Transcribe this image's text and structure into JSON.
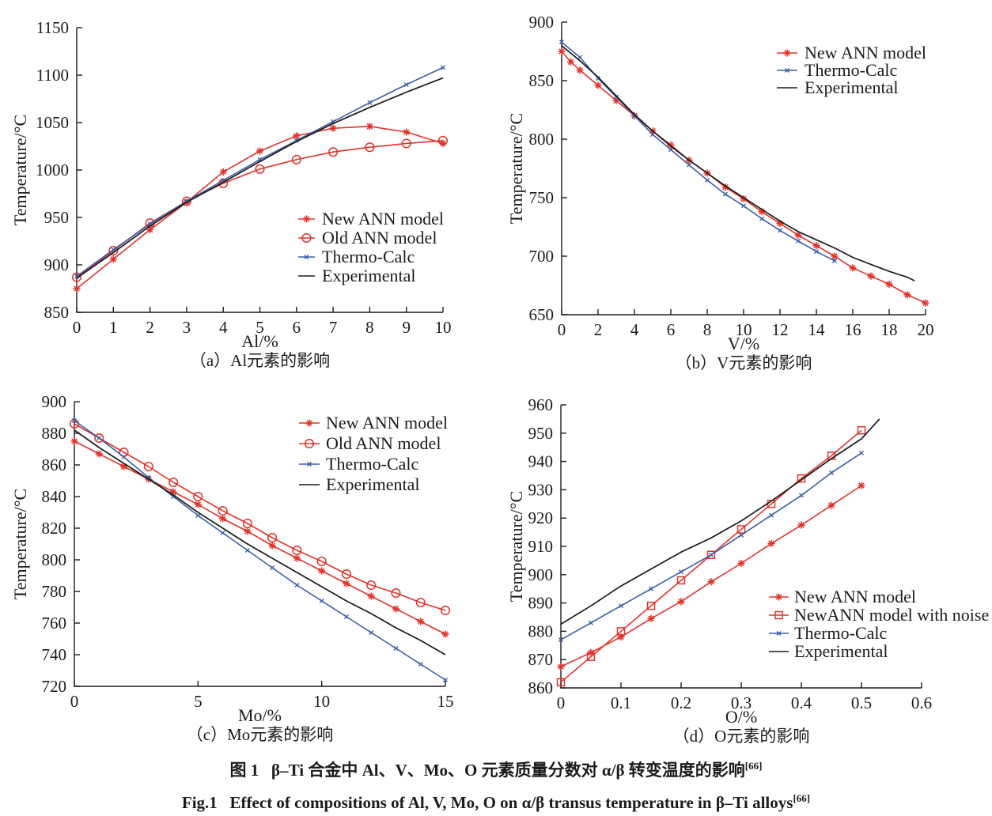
{
  "figure": {
    "caption_chinese": "图 1   β–Ti 合金中 Al、V、Mo、O 元素质量分数对 α/β 转变温度的影响",
    "caption_english": "Fig.1   Effect of compositions of Al, V, Mo, O on α/β transus temperature in β–Ti alloys",
    "reference_superscript": "[66]"
  },
  "colors": {
    "red": "#e0342b",
    "blue": "#3a5fa8",
    "black": "#1b1b1b"
  },
  "chart_data": [
    {
      "id": "a",
      "type": "line",
      "subtitle": "（a）Al元素的影响",
      "xlabel": "Al/%",
      "ylabel": "Temperature/°C",
      "xlim": [
        0,
        10
      ],
      "ylim": [
        850,
        1150
      ],
      "xticks": [
        0,
        1,
        2,
        3,
        4,
        5,
        6,
        7,
        8,
        9,
        10
      ],
      "yticks": [
        850,
        900,
        950,
        1000,
        1050,
        1100,
        1150
      ],
      "grid": false,
      "legend_position": "right-lower",
      "series": [
        {
          "name": "New ANN model",
          "color": "red",
          "marker": "star",
          "x": [
            0,
            1,
            2,
            3,
            4,
            5,
            6,
            7,
            8,
            9,
            10
          ],
          "y": [
            875,
            906,
            937,
            966,
            998,
            1020,
            1036,
            1044,
            1046,
            1040,
            1028
          ]
        },
        {
          "name": "Old ANN model",
          "color": "red",
          "marker": "circle",
          "x": [
            0,
            1,
            2,
            3,
            4,
            5,
            6,
            7,
            8,
            9,
            10
          ],
          "y": [
            887,
            915,
            944,
            967,
            986,
            1001,
            1011,
            1019,
            1024,
            1028,
            1031
          ]
        },
        {
          "name": "Thermo-Calc",
          "color": "blue",
          "marker": "x",
          "x": [
            0,
            1,
            2,
            3,
            4,
            5,
            6,
            7,
            8,
            9,
            10
          ],
          "y": [
            888,
            916,
            943,
            967,
            989,
            1011,
            1031,
            1051,
            1071,
            1090,
            1108
          ]
        },
        {
          "name": "Experimental",
          "color": "black",
          "marker": "none",
          "x": [
            0,
            1,
            2,
            3,
            4,
            5,
            6,
            7,
            8,
            9,
            10
          ],
          "y": [
            886,
            913,
            941,
            966,
            987,
            1009,
            1030,
            1049,
            1066,
            1082,
            1097
          ]
        }
      ]
    },
    {
      "id": "b",
      "type": "line",
      "subtitle": "（b）V元素的影响",
      "xlabel": "V/%",
      "ylabel": "Temperature/°C",
      "xlim": [
        0,
        20
      ],
      "ylim": [
        650,
        900
      ],
      "xticks": [
        0,
        2,
        4,
        6,
        8,
        10,
        12,
        14,
        16,
        18,
        20
      ],
      "yticks": [
        650,
        700,
        750,
        800,
        850,
        900
      ],
      "grid": false,
      "legend_position": "top-right",
      "series": [
        {
          "name": "New ANN model",
          "color": "red",
          "marker": "star",
          "x": [
            0,
            0.5,
            1,
            2,
            3,
            4,
            5,
            6,
            7,
            8,
            9,
            10,
            11,
            12,
            13,
            14,
            15,
            16,
            17,
            18,
            19,
            20
          ],
          "y": [
            875,
            866,
            859,
            846,
            833,
            820,
            807,
            795,
            782,
            771,
            759,
            749,
            738,
            728,
            718,
            709,
            700,
            690,
            683,
            676,
            667,
            660
          ]
        },
        {
          "name": "Thermo-Calc",
          "color": "blue",
          "marker": "x",
          "x": [
            0,
            1,
            2,
            3,
            4,
            5,
            6,
            7,
            8,
            9,
            10,
            11,
            12,
            13,
            14,
            15
          ],
          "y": [
            883,
            870,
            852,
            836,
            820,
            804,
            791,
            778,
            765,
            753,
            743,
            732,
            722,
            713,
            704,
            696
          ]
        },
        {
          "name": "Experimental",
          "color": "black",
          "marker": "none",
          "x": [
            0,
            1,
            2,
            3,
            4,
            5,
            6,
            7,
            8,
            9,
            10,
            11,
            12,
            13,
            14,
            15,
            16,
            17,
            18,
            19,
            19.4
          ],
          "y": [
            880,
            867,
            853,
            837,
            821,
            807,
            794,
            782,
            771,
            760,
            750,
            740,
            730,
            721,
            714,
            707,
            699,
            693,
            687,
            682,
            679
          ]
        }
      ]
    },
    {
      "id": "c",
      "type": "line",
      "subtitle": "（c）Mo元素的影响",
      "xlabel": "Mo/%",
      "ylabel": "Temperature/°C",
      "xlim": [
        0,
        15
      ],
      "ylim": [
        720,
        900
      ],
      "xticks": [
        0,
        5,
        10,
        15
      ],
      "yticks": [
        720,
        740,
        760,
        780,
        800,
        820,
        840,
        860,
        880,
        900
      ],
      "grid": false,
      "legend_position": "top-right",
      "series": [
        {
          "name": "New ANN model",
          "color": "red",
          "marker": "star",
          "x": [
            0,
            1,
            2,
            3,
            4,
            5,
            6,
            7,
            8,
            9,
            10,
            11,
            12,
            13,
            14,
            15
          ],
          "y": [
            875,
            867,
            859,
            851,
            843,
            835,
            826,
            818,
            809,
            801,
            793,
            785,
            777,
            769,
            761,
            753
          ]
        },
        {
          "name": "Old ANN model",
          "color": "red",
          "marker": "circle",
          "x": [
            0,
            1,
            2,
            3,
            4,
            5,
            6,
            7,
            8,
            9,
            10,
            11,
            12,
            13,
            14,
            15
          ],
          "y": [
            886,
            877,
            868,
            859,
            849,
            840,
            831,
            823,
            814,
            806,
            799,
            791,
            784,
            779,
            773,
            768
          ]
        },
        {
          "name": "Thermo-Calc",
          "color": "blue",
          "marker": "x",
          "x": [
            0,
            1,
            2,
            3,
            4,
            5,
            6,
            7,
            8,
            9,
            10,
            11,
            12,
            13,
            14,
            15
          ],
          "y": [
            888,
            877,
            865,
            852,
            840,
            828,
            817,
            806,
            795,
            784,
            774,
            764,
            754,
            744,
            734,
            724
          ]
        },
        {
          "name": "Experimental",
          "color": "black",
          "marker": "none",
          "x": [
            0,
            1,
            2,
            3,
            4,
            5,
            6,
            7,
            8,
            9,
            10,
            11,
            12,
            13,
            14,
            15
          ],
          "y": [
            882,
            871,
            861,
            851,
            841,
            830,
            820,
            810,
            801,
            792,
            783,
            774,
            766,
            757,
            749,
            740
          ]
        }
      ]
    },
    {
      "id": "d",
      "type": "line",
      "subtitle": "（d）O元素的影响",
      "xlabel": "O/%",
      "ylabel": "Temperature/°C",
      "xlim": [
        0,
        0.6
      ],
      "ylim": [
        860,
        960
      ],
      "xticks": [
        0,
        0.1,
        0.2,
        0.3,
        0.4,
        0.5,
        0.6
      ],
      "yticks": [
        860,
        870,
        880,
        890,
        900,
        910,
        920,
        930,
        940,
        950,
        960
      ],
      "grid": false,
      "legend_position": "right-lower",
      "series": [
        {
          "name": "New ANN model",
          "color": "red",
          "marker": "star",
          "x": [
            0,
            0.05,
            0.1,
            0.15,
            0.2,
            0.25,
            0.3,
            0.35,
            0.4,
            0.45,
            0.5
          ],
          "y": [
            867.5,
            872.5,
            878,
            884.5,
            890.5,
            897.5,
            904,
            911,
            917.5,
            924.5,
            931.5
          ]
        },
        {
          "name": "NewANN model with noise",
          "color": "red",
          "marker": "square",
          "x": [
            0,
            0.05,
            0.1,
            0.15,
            0.2,
            0.25,
            0.3,
            0.35,
            0.4,
            0.45,
            0.5
          ],
          "y": [
            862,
            871,
            880,
            889,
            898,
            907,
            916,
            925,
            934,
            942,
            951
          ]
        },
        {
          "name": "Thermo-Calc",
          "color": "blue",
          "marker": "x",
          "x": [
            0,
            0.05,
            0.1,
            0.15,
            0.2,
            0.25,
            0.3,
            0.35,
            0.4,
            0.45,
            0.5
          ],
          "y": [
            877,
            883,
            889,
            895,
            901,
            907,
            914,
            921,
            928,
            936,
            943
          ]
        },
        {
          "name": "Experimental",
          "color": "black",
          "marker": "none",
          "x": [
            0,
            0.05,
            0.1,
            0.15,
            0.2,
            0.25,
            0.3,
            0.35,
            0.4,
            0.45,
            0.5,
            0.53
          ],
          "y": [
            882.5,
            889,
            896,
            902,
            908,
            913,
            919,
            926,
            933.5,
            941,
            948,
            955
          ]
        }
      ]
    }
  ]
}
